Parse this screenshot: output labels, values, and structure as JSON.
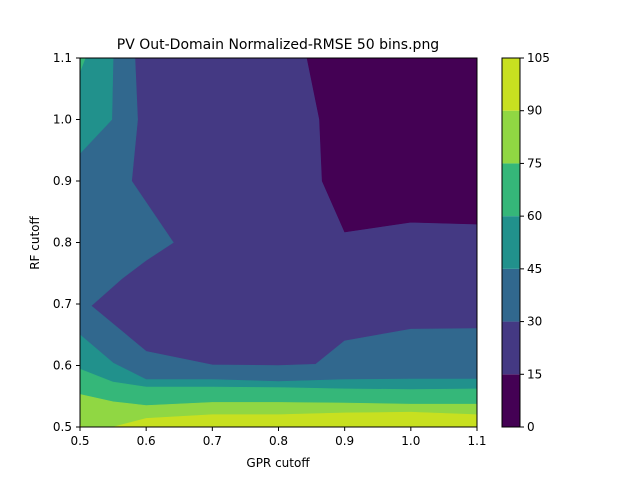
{
  "chart_data": {
    "type": "contourf",
    "title": "PV Out-Domain Normalized-RMSE 50 bins.png",
    "xlabel": "GPR cutoff",
    "ylabel": "RF cutoff",
    "xlim": [
      0.5,
      1.1
    ],
    "ylim": [
      0.5,
      1.1
    ],
    "x_ticks": [
      "0.5",
      "0.6",
      "0.7",
      "0.8",
      "0.9",
      "1.0",
      "1.1"
    ],
    "y_ticks": [
      "0.5",
      "0.6",
      "0.7",
      "0.8",
      "0.9",
      "1.0",
      "1.1"
    ],
    "colorbar": {
      "levels": [
        0,
        15,
        30,
        45,
        60,
        75,
        90,
        105
      ],
      "tick_labels": [
        "0",
        "15",
        "30",
        "45",
        "60",
        "75",
        "90",
        "105"
      ],
      "colors": [
        "#440154",
        "#443983",
        "#31688e",
        "#21918c",
        "#35b779",
        "#90d743",
        "#c8e020"
      ]
    },
    "regions": [
      {
        "level": "15-30",
        "color_index": 1,
        "polygon": [
          [
            0.5,
            1.1
          ],
          [
            1.1,
            1.1
          ],
          [
            1.1,
            0.5
          ],
          [
            0.5,
            0.5
          ]
        ]
      },
      {
        "level": "0-15",
        "color_index": 0,
        "polygon": [
          [
            0.843,
            1.1
          ],
          [
            1.1,
            1.1
          ],
          [
            1.1,
            0.83
          ],
          [
            1.0,
            0.833
          ],
          [
            0.9,
            0.817
          ],
          [
            0.866,
            0.9
          ],
          [
            0.862,
            1.0
          ]
        ]
      },
      {
        "level": "30-45",
        "color_index": 2,
        "polygon": [
          [
            0.5,
            1.1
          ],
          [
            0.55,
            1.1
          ],
          [
            0.583,
            1.1
          ],
          [
            0.587,
            1.0
          ],
          [
            0.578,
            0.9
          ],
          [
            0.641,
            0.8
          ],
          [
            0.6,
            0.771
          ],
          [
            0.563,
            0.741
          ],
          [
            0.517,
            0.697
          ],
          [
            0.6,
            0.623
          ],
          [
            0.7,
            0.601
          ],
          [
            0.8,
            0.6
          ],
          [
            0.856,
            0.602
          ],
          [
            0.9,
            0.64
          ],
          [
            1.0,
            0.659
          ],
          [
            1.1,
            0.66
          ],
          [
            1.1,
            0.5
          ],
          [
            0.5,
            0.5
          ]
        ]
      },
      {
        "level": "45-60",
        "color_index": 3,
        "polygon": [
          [
            0.5,
            1.1
          ],
          [
            0.55,
            1.1
          ],
          [
            0.548,
            1.0
          ],
          [
            0.5,
            0.945
          ]
        ]
      },
      {
        "level": "45-60",
        "color_index": 3,
        "polygon": [
          [
            0.5,
            0.65
          ],
          [
            0.55,
            0.604
          ],
          [
            0.6,
            0.577
          ],
          [
            0.7,
            0.577
          ],
          [
            0.8,
            0.574
          ],
          [
            0.9,
            0.577
          ],
          [
            1.0,
            0.578
          ],
          [
            1.1,
            0.578
          ],
          [
            1.1,
            0.5
          ],
          [
            0.5,
            0.5
          ]
        ]
      },
      {
        "level": "60-75",
        "color_index": 4,
        "polygon": [
          [
            0.5,
            1.1
          ],
          [
            0.508,
            1.1
          ],
          [
            0.5,
            1.078
          ]
        ]
      },
      {
        "level": "60-75",
        "color_index": 4,
        "polygon": [
          [
            0.5,
            0.594
          ],
          [
            0.55,
            0.573
          ],
          [
            0.6,
            0.565
          ],
          [
            0.7,
            0.565
          ],
          [
            0.8,
            0.564
          ],
          [
            0.9,
            0.562
          ],
          [
            1.0,
            0.561
          ],
          [
            1.1,
            0.562
          ],
          [
            1.1,
            0.5
          ],
          [
            0.5,
            0.5
          ]
        ]
      },
      {
        "level": "75-90",
        "color_index": 5,
        "polygon": [
          [
            0.5,
            0.553
          ],
          [
            0.55,
            0.541
          ],
          [
            0.6,
            0.535
          ],
          [
            0.7,
            0.54
          ],
          [
            0.8,
            0.54
          ],
          [
            0.9,
            0.539
          ],
          [
            1.0,
            0.537
          ],
          [
            1.1,
            0.537
          ],
          [
            1.1,
            0.5
          ],
          [
            0.5,
            0.5
          ]
        ]
      },
      {
        "level": "90-105",
        "color_index": 6,
        "polygon": [
          [
            0.55,
            0.5
          ],
          [
            0.6,
            0.514
          ],
          [
            0.7,
            0.52
          ],
          [
            0.8,
            0.52
          ],
          [
            0.9,
            0.523
          ],
          [
            1.0,
            0.524
          ],
          [
            1.1,
            0.52
          ],
          [
            1.1,
            0.5
          ]
        ]
      },
      {
        "level": "90-105",
        "color_index": 6,
        "polygon": [
          [
            0.5,
            0.505
          ],
          [
            0.502,
            0.5
          ],
          [
            0.5,
            0.5
          ]
        ]
      }
    ]
  }
}
